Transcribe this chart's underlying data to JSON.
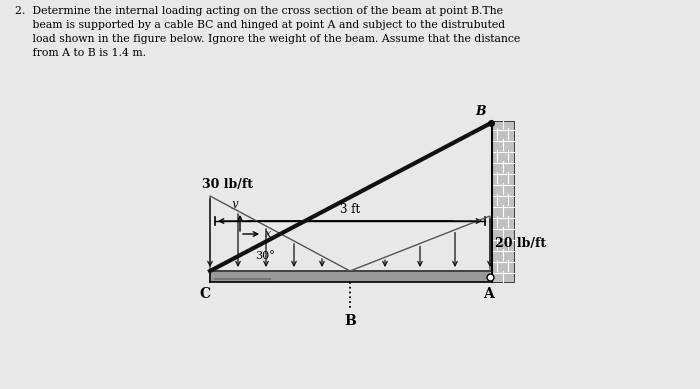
{
  "bg_color": "#e8e8e8",
  "title_text_line1": "2.  Determine the internal loading acting on the cross section of the beam at point B.The",
  "title_text_line2": "     beam is supported by a cable BC and hinged at point A and subject to the distrubuted",
  "title_text_line3": "     load shown in the figure below. Ignore the weight of the beam. Assume that the distance",
  "title_text_line4": "     from A to B is 1.4 m.",
  "dim_label": "3 ft",
  "label_30lb": "30 lb/ft",
  "label_20lb": "20 lb/ft",
  "angle_label": "30°",
  "label_A": "A",
  "label_B_cable": "B",
  "label_C": "C",
  "label_B_section": "B",
  "label_x": "x",
  "label_y": "y",
  "beam_color": "#999999",
  "wall_color": "#bbbbbb",
  "cable_color": "#111111",
  "load_line_color": "#555555",
  "arrow_color": "#111111"
}
